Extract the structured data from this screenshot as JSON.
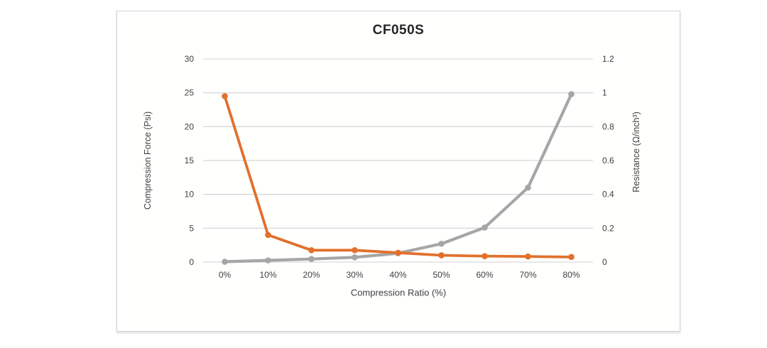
{
  "page": {
    "background_color": "#ffffff",
    "panel_background_color": "#fffffe",
    "panel_border_color": "#d6d4d1"
  },
  "chart": {
    "title": "CF050S",
    "title_color": "#262626",
    "gridline_color": "#d9d9d9",
    "tick_label_color": "#404040",
    "x_axis": {
      "title": "Compression Ratio (%)",
      "tick_labels": [
        "0%",
        "10%",
        "20%",
        "30%",
        "40%",
        "50%",
        "60%",
        "70%",
        "80%"
      ]
    },
    "y_axis_left": {
      "title": "Compression Force (Psi)",
      "tick_labels": [
        "30",
        "25",
        "20",
        "15",
        "10",
        "5",
        "0"
      ]
    },
    "y_axis_right": {
      "title": "Resistance (Ω/inch³)",
      "tick_labels": [
        "1.2",
        "1",
        "0.8",
        "0.6",
        "0.4",
        "0.2",
        "0"
      ]
    }
  },
  "chart_data": {
    "type": "line",
    "title": "CF050S",
    "categories": [
      "0%",
      "10%",
      "20%",
      "30%",
      "40%",
      "50%",
      "60%",
      "70%",
      "80%"
    ],
    "series": [
      {
        "name": "Compression Force (Psi)",
        "axis": "left",
        "color": "#a6a6a6",
        "values": [
          0.05,
          0.25,
          0.45,
          0.7,
          1.3,
          2.7,
          5.1,
          11,
          24.8
        ]
      },
      {
        "name": "Resistance (Ω/inch³)",
        "axis": "right",
        "color": "#e2702d",
        "values": [
          0.98,
          0.16,
          0.07,
          0.07,
          0.055,
          0.04,
          0.035,
          0.033,
          0.03
        ]
      }
    ],
    "xlabel": "Compression Ratio (%)",
    "ylabel_left": "Compression Force (Psi)",
    "ylabel_right": "Resistance (Ω/inch³)",
    "ylim_left": [
      0,
      30
    ],
    "ylim_right": [
      0,
      1.2
    ],
    "grid": true,
    "legend": "none"
  }
}
